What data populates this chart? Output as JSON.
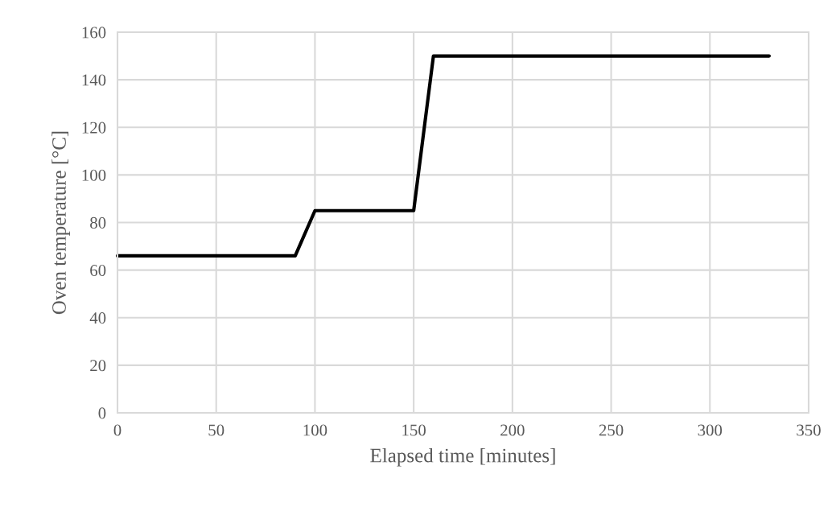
{
  "chart_data": {
    "type": "line",
    "xlabel": "Elapsed time [minutes]",
    "ylabel": "Oven temperature [°C]",
    "x": [
      0,
      90,
      100,
      150,
      160,
      330
    ],
    "series": [
      {
        "color": "#000000",
        "values": [
          66,
          66,
          85,
          85,
          150,
          150
        ]
      }
    ],
    "xlim": [
      0,
      350
    ],
    "xticks": [
      0,
      50,
      100,
      150,
      200,
      250,
      300,
      350
    ],
    "ylim": [
      0,
      160
    ],
    "yticks": [
      0,
      20,
      40,
      60,
      80,
      100,
      120,
      140,
      160
    ],
    "grid": true,
    "marker": "none",
    "line_style": "solid"
  }
}
